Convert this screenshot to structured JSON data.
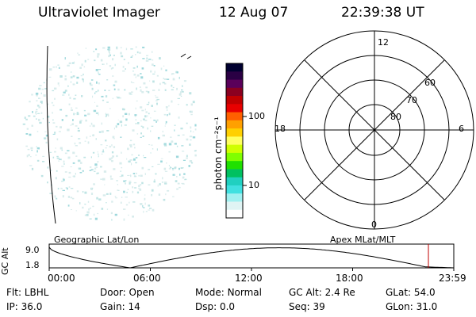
{
  "header": {
    "title": "Ultraviolet Imager",
    "date": "12 Aug 07",
    "time": "22:39:38 UT"
  },
  "colorbar": {
    "label": "photon cm⁻²s⁻¹",
    "ticks": [
      "100",
      "10"
    ],
    "colors": [
      "#000030",
      "#2a0044",
      "#5a005a",
      "#8a0020",
      "#c00000",
      "#e80000",
      "#ff6000",
      "#ffa000",
      "#ffd000",
      "#ffff60",
      "#d0ff00",
      "#80ff00",
      "#20e000",
      "#00c060",
      "#20d0c0",
      "#40e0e0",
      "#a0f0f0",
      "#e0f4f4",
      "#ffffff"
    ]
  },
  "polar": {
    "labels": {
      "top": "12",
      "left": "18",
      "right": "6",
      "bottom": "0"
    },
    "lat_labels": [
      "60",
      "70",
      "80"
    ]
  },
  "timeline": {
    "axis_label": "GC Alt",
    "y_ticks": [
      "9.0",
      "1.8"
    ],
    "left_title": "Geographic Lat/Lon",
    "right_title": "Apex MLat/MLT",
    "x_ticks": [
      "00:00",
      "06:00",
      "12:00",
      "18:00",
      "23:59"
    ]
  },
  "status": [
    [
      {
        "k": "Flt:",
        "v": "LBHL"
      },
      {
        "k": "Door:",
        "v": "Open"
      },
      {
        "k": "Mode:",
        "v": "Normal"
      },
      {
        "k": "GC Alt:",
        "v": "2.4 Re"
      },
      {
        "k": "GLat:",
        "v": "54.0"
      }
    ],
    [
      {
        "k": "IP:",
        "v": "36.0"
      },
      {
        "k": "Gain:",
        "v": "14"
      },
      {
        "k": "Dsp:",
        "v": "0.0"
      },
      {
        "k": "Seq:",
        "v": "39"
      },
      {
        "k": "GLon:",
        "v": "31.0"
      }
    ]
  ]
}
